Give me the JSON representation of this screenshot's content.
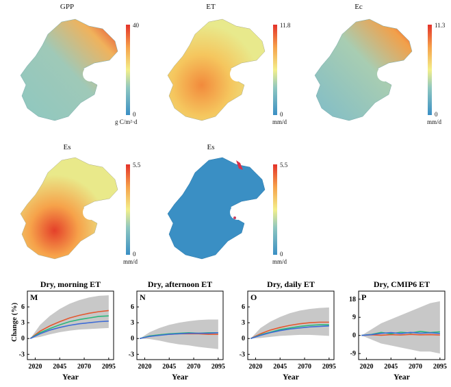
{
  "maps": [
    {
      "title": "GPP",
      "cb_max": "40",
      "cb_min": "0",
      "unit": "g C/m²·d"
    },
    {
      "title": "ET",
      "cb_max": "11.8",
      "cb_min": "0",
      "unit": "mm/d"
    },
    {
      "title": "Ec",
      "cb_max": "11.3",
      "cb_min": "0",
      "unit": "mm/d"
    },
    {
      "title": "Es",
      "cb_max": "5.5",
      "cb_min": "0",
      "unit": "mm/d"
    },
    {
      "title": "Es",
      "cb_max": "5.5",
      "cb_min": "0",
      "unit": "mm/d"
    }
  ],
  "colors": {
    "red": "#e4572e",
    "green": "#2ab77a",
    "blue": "#3d6bd6",
    "band": "#c8c8c8"
  },
  "y_axis_label": "Change (%)",
  "chart_data": [
    {
      "type": "line",
      "letter": "M",
      "title": "Dry, morning ET",
      "xlabel": "Year",
      "ylabel": "Change (%)",
      "xticks": [
        2020,
        2045,
        2070,
        2095
      ],
      "yticks": [
        -3,
        0,
        3,
        6
      ],
      "xlim": [
        2012,
        2100
      ],
      "ylim": [
        -4,
        9
      ],
      "x": [
        2015,
        2025,
        2035,
        2045,
        2055,
        2065,
        2075,
        2085,
        2095
      ],
      "series": [
        {
          "name": "red",
          "values": [
            0,
            1.4,
            2.4,
            3.2,
            3.9,
            4.4,
            4.8,
            5.1,
            5.3
          ]
        },
        {
          "name": "green",
          "values": [
            0,
            1.1,
            1.9,
            2.6,
            3.2,
            3.6,
            3.9,
            4.2,
            4.3
          ]
        },
        {
          "name": "blue",
          "values": [
            0,
            0.9,
            1.6,
            2.1,
            2.5,
            2.8,
            3.0,
            3.2,
            3.3
          ]
        }
      ],
      "band_upper": [
        0,
        2.6,
        4.3,
        5.6,
        6.6,
        7.3,
        7.8,
        8.1,
        8.2
      ],
      "band_lower": [
        0,
        0.3,
        0.8,
        1.2,
        1.5,
        1.7,
        1.8,
        1.9,
        2.0
      ]
    },
    {
      "type": "line",
      "letter": "N",
      "title": "Dry, afternoon ET",
      "xlabel": "Year",
      "ylabel": "",
      "xticks": [
        2020,
        2045,
        2070,
        2095
      ],
      "yticks": [
        -3,
        0,
        3,
        6
      ],
      "xlim": [
        2012,
        2100
      ],
      "ylim": [
        -4,
        9
      ],
      "x": [
        2015,
        2025,
        2035,
        2045,
        2055,
        2065,
        2075,
        2085,
        2095
      ],
      "series": [
        {
          "name": "red",
          "values": [
            0,
            0.4,
            0.7,
            0.8,
            0.9,
            0.9,
            0.9,
            0.8,
            0.8
          ]
        },
        {
          "name": "green",
          "values": [
            0,
            0.5,
            0.7,
            0.9,
            1.0,
            1.1,
            1.0,
            1.1,
            1.1
          ]
        },
        {
          "name": "blue",
          "values": [
            0,
            0.4,
            0.6,
            0.8,
            0.9,
            1.0,
            1.0,
            1.0,
            1.1
          ]
        }
      ],
      "band_upper": [
        0,
        1.2,
        2.0,
        2.6,
        3.0,
        3.3,
        3.5,
        3.6,
        3.6
      ],
      "band_lower": [
        0,
        -0.1,
        -0.4,
        -0.8,
        -1.1,
        -1.3,
        -1.6,
        -1.8,
        -2.0
      ]
    },
    {
      "type": "line",
      "letter": "O",
      "title": "Dry, daily ET",
      "xlabel": "Year",
      "ylabel": "",
      "xticks": [
        2020,
        2045,
        2070,
        2095
      ],
      "yticks": [
        -3,
        0,
        3,
        6
      ],
      "xlim": [
        2012,
        2100
      ],
      "ylim": [
        -4,
        9
      ],
      "x": [
        2015,
        2025,
        2035,
        2045,
        2055,
        2065,
        2075,
        2085,
        2095
      ],
      "series": [
        {
          "name": "red",
          "values": [
            0,
            0.9,
            1.6,
            2.1,
            2.5,
            2.8,
            3.0,
            3.1,
            3.1
          ]
        },
        {
          "name": "green",
          "values": [
            0,
            0.7,
            1.2,
            1.7,
            2.0,
            2.3,
            2.5,
            2.6,
            2.6
          ]
        },
        {
          "name": "blue",
          "values": [
            0,
            0.6,
            1.1,
            1.5,
            1.8,
            2.0,
            2.2,
            2.3,
            2.4
          ]
        }
      ],
      "band_upper": [
        0,
        2.0,
        3.2,
        4.1,
        4.8,
        5.3,
        5.6,
        5.8,
        5.9
      ],
      "band_lower": [
        0,
        0.1,
        0.3,
        0.5,
        0.6,
        0.7,
        0.7,
        0.6,
        0.5
      ]
    },
    {
      "type": "line",
      "letter": "P",
      "title": "Dry, CMIP6 ET",
      "xlabel": "Year",
      "ylabel": "",
      "xticks": [
        2020,
        2045,
        2070,
        2095
      ],
      "yticks": [
        -9,
        0,
        9,
        18
      ],
      "xlim": [
        2012,
        2100
      ],
      "ylim": [
        -12,
        22
      ],
      "x": [
        2015,
        2025,
        2035,
        2045,
        2055,
        2065,
        2075,
        2085,
        2095
      ],
      "series": [
        {
          "name": "red",
          "values": [
            0,
            0.3,
            0.1,
            0.4,
            0.2,
            0.5,
            0.3,
            0.4,
            0.2
          ]
        },
        {
          "name": "green",
          "values": [
            0,
            0.5,
            1.5,
            0.8,
            1.6,
            1.2,
            2.0,
            1.4,
            1.8
          ]
        },
        {
          "name": "blue",
          "values": [
            0,
            0.4,
            1.0,
            1.4,
            0.9,
            1.5,
            1.1,
            1.3,
            1.0
          ]
        }
      ],
      "band_upper": [
        0,
        3,
        6,
        8,
        10,
        12,
        14,
        16,
        17
      ],
      "band_lower": [
        0,
        -2,
        -4,
        -5,
        -6,
        -7,
        -8,
        -8,
        -9
      ]
    }
  ]
}
